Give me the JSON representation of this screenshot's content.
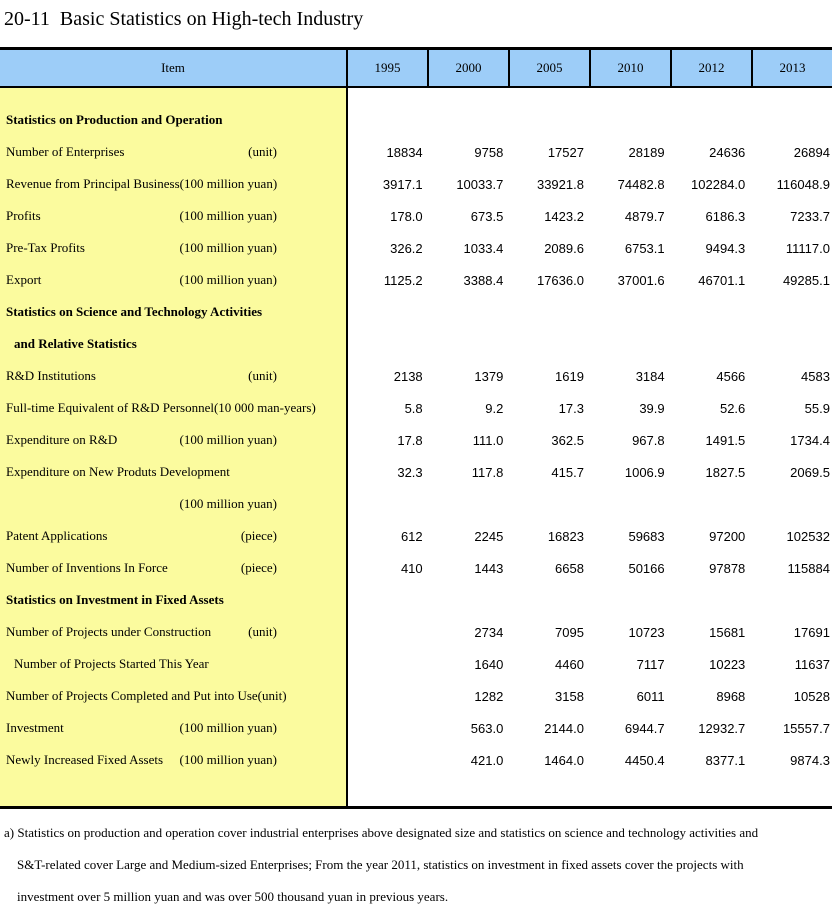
{
  "title": "20-11  Basic Statistics on High-tech Industry",
  "colors": {
    "header_bg": "#9DCDF8",
    "item_column_bg": "#FBFB9E",
    "border": "#000000"
  },
  "table": {
    "item_header": "Item",
    "years": [
      "1995",
      "2000",
      "2005",
      "2010",
      "2012",
      "2013"
    ],
    "rows": [
      {
        "type": "section",
        "label": "Statistics on Production and Operation",
        "unit": "",
        "values": [
          "",
          "",
          "",
          "",
          "",
          ""
        ]
      },
      {
        "type": "data",
        "label": "Number of Enterprises",
        "unit": "(unit)",
        "values": [
          "18834",
          "9758",
          "17527",
          "28189",
          "24636",
          "26894"
        ]
      },
      {
        "type": "data",
        "label": "Revenue from Principal Business",
        "unit": "(100 million yuan)",
        "values": [
          "3917.1",
          "10033.7",
          "33921.8",
          "74482.8",
          "102284.0",
          "116048.9"
        ]
      },
      {
        "type": "data",
        "label": "Profits",
        "unit": "(100 million yuan)",
        "values": [
          "178.0",
          "673.5",
          "1423.2",
          "4879.7",
          "6186.3",
          "7233.7"
        ]
      },
      {
        "type": "data",
        "label": "Pre-Tax Profits",
        "unit": "(100 million yuan)",
        "values": [
          "326.2",
          "1033.4",
          "2089.6",
          "6753.1",
          "9494.3",
          "11117.0"
        ]
      },
      {
        "type": "data",
        "label": "Export",
        "unit": "(100 million yuan)",
        "values": [
          "1125.2",
          "3388.4",
          "17636.0",
          "37001.6",
          "46701.1",
          "49285.1"
        ]
      },
      {
        "type": "section",
        "label": "Statistics on Science and Technology Activities",
        "unit": "",
        "values": [
          "",
          "",
          "",
          "",
          "",
          ""
        ]
      },
      {
        "type": "section",
        "label": "and Relative Statistics",
        "indent": true,
        "unit": "",
        "values": [
          "",
          "",
          "",
          "",
          "",
          ""
        ]
      },
      {
        "type": "data",
        "label": "R&D Institutions",
        "unit": "(unit)",
        "values": [
          "2138",
          "1379",
          "1619",
          "3184",
          "4566",
          "4583"
        ]
      },
      {
        "type": "data",
        "label": "Full-time Equivalent of R&D Personnel(10 000 man-years)",
        "unit": "",
        "values": [
          "5.8",
          "9.2",
          "17.3",
          "39.9",
          "52.6",
          "55.9"
        ]
      },
      {
        "type": "data",
        "label": "Expenditure on R&D",
        "unit": "(100 million yuan)",
        "values": [
          "17.8",
          "111.0",
          "362.5",
          "967.8",
          "1491.5",
          "1734.4"
        ]
      },
      {
        "type": "data",
        "label": "Expenditure on New Produts Development",
        "unit": "",
        "values": [
          "32.3",
          "117.8",
          "415.7",
          "1006.9",
          "1827.5",
          "2069.5"
        ]
      },
      {
        "type": "data",
        "label": "",
        "unit": "(100 million yuan)",
        "values": [
          "",
          "",
          "",
          "",
          "",
          ""
        ]
      },
      {
        "type": "data",
        "label": "Patent Applications",
        "unit": "(piece)",
        "values": [
          "612",
          "2245",
          "16823",
          "59683",
          "97200",
          "102532"
        ]
      },
      {
        "type": "data",
        "label": "Number of Inventions In Force",
        "unit": "(piece)",
        "values": [
          "410",
          "1443",
          "6658",
          "50166",
          "97878",
          "115884"
        ]
      },
      {
        "type": "section",
        "label": "Statistics on Investment in Fixed Assets",
        "unit": "",
        "values": [
          "",
          "",
          "",
          "",
          "",
          ""
        ]
      },
      {
        "type": "data",
        "label": "Number of Projects under Construction",
        "unit": "(unit)",
        "values": [
          "",
          "2734",
          "7095",
          "10723",
          "15681",
          "17691"
        ]
      },
      {
        "type": "data",
        "label": "Number of Projects Started This Year",
        "indent": true,
        "unit": "",
        "values": [
          "",
          "1640",
          "4460",
          "7117",
          "10223",
          "11637"
        ]
      },
      {
        "type": "data",
        "label": "Number of Projects Completed and Put into Use(unit)",
        "unit": "",
        "values": [
          "",
          "1282",
          "3158",
          "6011",
          "8968",
          "10528"
        ]
      },
      {
        "type": "data",
        "label": "Investment",
        "unit": "(100 million yuan)",
        "values": [
          "",
          "563.0",
          "2144.0",
          "6944.7",
          "12932.7",
          "15557.7"
        ]
      },
      {
        "type": "data",
        "label": "Newly Increased Fixed Assets",
        "unit": "(100 million yuan)",
        "values": [
          "",
          "421.0",
          "1464.0",
          "4450.4",
          "8377.1",
          "9874.3"
        ]
      }
    ]
  },
  "footnote": {
    "lines": [
      "a) Statistics on production and operation cover industrial enterprises above designated size and statistics on science and technology activities and",
      "S&T-related cover Large and Medium-sized Enterprises; From the year 2011, statistics on investment in fixed assets cover the projects with",
      "investment over 5 million yuan and was over 500 thousand yuan in previous years."
    ]
  }
}
